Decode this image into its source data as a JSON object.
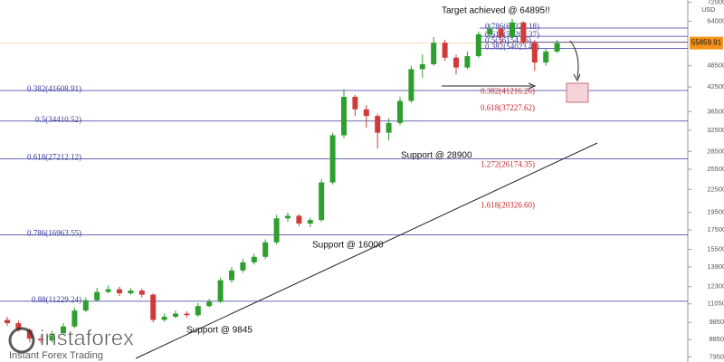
{
  "chart_data": {
    "type": "candlestick",
    "axis_unit": "USD",
    "log_scale": true,
    "ylim": [
      7700,
      73000
    ],
    "yticks": [
      {
        "value": 7950,
        "label": "7950.00"
      },
      {
        "value": 8850,
        "label": "8850.00"
      },
      {
        "value": 9850,
        "label": "9850.00"
      },
      {
        "value": 11050,
        "label": "11050.00"
      },
      {
        "value": 12300,
        "label": "12300.00"
      },
      {
        "value": 13900,
        "label": "13900.00"
      },
      {
        "value": 15500,
        "label": "15500.00"
      },
      {
        "value": 17500,
        "label": "17500.00"
      },
      {
        "value": 19500,
        "label": "19500.00"
      },
      {
        "value": 22500,
        "label": "22500.00"
      },
      {
        "value": 25500,
        "label": "25500.00"
      },
      {
        "value": 28500,
        "label": "28500.00"
      },
      {
        "value": 32500,
        "label": "32500.00"
      },
      {
        "value": 36500,
        "label": "36500.00"
      },
      {
        "value": 42500,
        "label": "42500.00"
      },
      {
        "value": 48500,
        "label": "48500.00"
      },
      {
        "value": 64000,
        "label": "64000.00"
      },
      {
        "value": 72000,
        "label": "72000.00"
      }
    ],
    "up_color": "#2e9e2e",
    "down_color": "#d23a3a",
    "open": [
      10000,
      9800,
      9400,
      8900,
      8800,
      9200,
      9600,
      10600,
      11300,
      11900,
      12100,
      11800,
      12000,
      11700,
      10000,
      10200,
      10400,
      10300,
      10900,
      11200,
      12800,
      13600,
      14300,
      14800,
      16200,
      18800,
      19100,
      18200,
      18600,
      23500,
      31500,
      40000,
      37000,
      35500,
      32000,
      34000,
      39000,
      47500,
      49000,
      56000,
      51000,
      48000,
      51500,
      59000,
      61000,
      58000,
      63500,
      56000,
      49500,
      53000
    ],
    "high": [
      10200,
      9950,
      9500,
      9100,
      9350,
      9800,
      10800,
      11500,
      12200,
      12400,
      12300,
      12200,
      12150,
      11800,
      10400,
      10600,
      10550,
      11100,
      11400,
      13000,
      13900,
      14600,
      15100,
      16500,
      19200,
      19500,
      19300,
      18900,
      24000,
      32000,
      41900,
      40500,
      38000,
      36000,
      35000,
      40000,
      48500,
      52000,
      58000,
      57000,
      52000,
      53000,
      60000,
      63000,
      61500,
      64895,
      64000,
      57000,
      54000,
      57000
    ],
    "low": [
      9650,
      9300,
      8700,
      8650,
      8700,
      9100,
      9500,
      10500,
      11200,
      11800,
      11600,
      11700,
      11500,
      9850,
      9900,
      10100,
      10150,
      10200,
      10800,
      11100,
      12600,
      13400,
      14100,
      14600,
      16000,
      18400,
      17900,
      17800,
      18400,
      23200,
      31000,
      35500,
      33000,
      29000,
      30500,
      33500,
      38500,
      45000,
      48500,
      50000,
      46000,
      47500,
      51000,
      57500,
      55500,
      57500,
      55500,
      47000,
      48500,
      52500
    ],
    "close": [
      9800,
      9400,
      8900,
      8800,
      9200,
      9600,
      10600,
      11300,
      11900,
      12100,
      11800,
      12000,
      11700,
      10000,
      10200,
      10400,
      10300,
      10900,
      11200,
      12800,
      13600,
      14300,
      14800,
      16200,
      18800,
      19100,
      18200,
      18600,
      23500,
      31500,
      40000,
      37000,
      35500,
      32000,
      34000,
      39000,
      47500,
      49000,
      56000,
      51000,
      48000,
      51500,
      59000,
      61000,
      58000,
      63500,
      56000,
      49500,
      53000,
      55860
    ],
    "current_price": 55859.91,
    "current_price_color": "#f7931a",
    "fib_levels": [
      {
        "value": 41608.91,
        "label": "0.382(41608.91)"
      },
      {
        "value": 34410.52,
        "label": "0.5(34410.52)"
      },
      {
        "value": 27212.12,
        "label": "0.618(27212.12)"
      },
      {
        "value": 16963.55,
        "label": "0.786(16963.55)"
      },
      {
        "value": 11229.24,
        "label": "0.88(11229.24)"
      }
    ],
    "top_fib_levels": [
      {
        "value": 61321.18,
        "label": "0.786(61321.18)"
      },
      {
        "value": 58264.37,
        "label": "0.618(58264.37)"
      },
      {
        "value": 56154.96,
        "label": "0.5(56154.96)"
      },
      {
        "value": 54023.44,
        "label": "0.382(54023.44)"
      }
    ],
    "projection_levels": [
      {
        "value": 41216.26,
        "label": "0.382(41216.26)"
      },
      {
        "value": 37227.62,
        "label": "0.618(37227.62)"
      },
      {
        "value": 26174.35,
        "label": "1.272(26174.35)"
      },
      {
        "value": 20326.6,
        "label": "1.618(20326.60)"
      }
    ],
    "fib_color": "#3a3a9e",
    "projection_color": "#c0282d",
    "annotations": [
      "Target achieved @ 64895!!",
      "Support @ 28900",
      "Support @ 16000",
      "Support @ 9845"
    ]
  },
  "logo": {
    "name": "instaforex",
    "tagline": "Instant Forex Trading"
  }
}
